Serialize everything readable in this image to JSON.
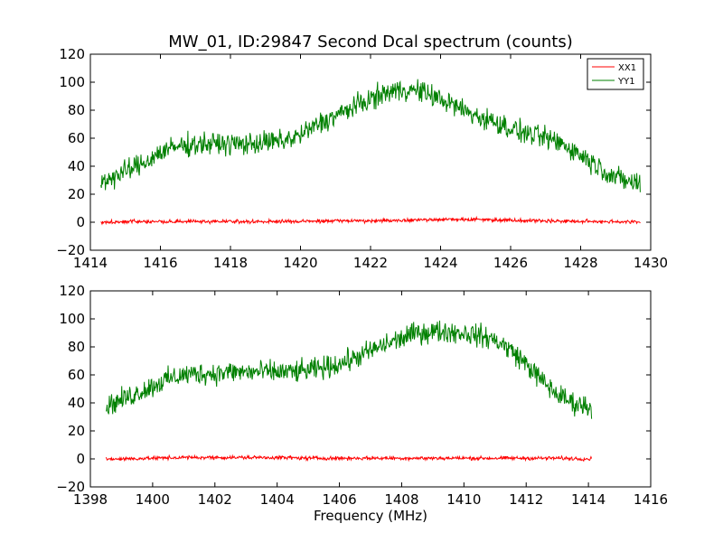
{
  "chart_data": [
    {
      "type": "line",
      "title": "MW_01, ID:29847 Second Dcal spectrum (counts)",
      "xlabel": "",
      "ylabel": "",
      "xlim": [
        1414,
        1430
      ],
      "ylim": [
        -20,
        120
      ],
      "xticks": [
        1414,
        1416,
        1418,
        1420,
        1422,
        1424,
        1426,
        1428,
        1430
      ],
      "yticks": [
        -20,
        0,
        20,
        40,
        60,
        80,
        100,
        120
      ],
      "legend": {
        "placement": "top-right",
        "entries": [
          "XX1",
          "YY1"
        ]
      },
      "series": [
        {
          "name": "XX1",
          "color": "#ff0000",
          "x": [
            1414.3,
            1415,
            1416,
            1417,
            1418,
            1419,
            1420,
            1421,
            1422,
            1423,
            1424,
            1425,
            1426,
            1427,
            1428,
            1429,
            1429.7
          ],
          "values": [
            0,
            0.5,
            0.5,
            0.5,
            0.5,
            0.5,
            0.5,
            1,
            1,
            1.5,
            2,
            2,
            1.5,
            1,
            0.5,
            0.5,
            0
          ],
          "noise": 1
        },
        {
          "name": "YY1",
          "color": "#008000",
          "x": [
            1414.3,
            1414.5,
            1415,
            1415.5,
            1416,
            1416.5,
            1417,
            1417.5,
            1418,
            1418.5,
            1419,
            1419.5,
            1420,
            1420.5,
            1421,
            1421.5,
            1422,
            1422.5,
            1423,
            1423.5,
            1424,
            1424.5,
            1425,
            1425.5,
            1426,
            1426.5,
            1427,
            1427.5,
            1428,
            1428.5,
            1429,
            1429.5,
            1429.7
          ],
          "values": [
            28,
            31,
            36,
            42,
            50,
            54,
            56,
            56,
            56,
            56,
            57,
            58,
            62,
            70,
            76,
            82,
            88,
            93,
            95,
            93,
            88,
            82,
            76,
            72,
            67,
            63,
            60,
            56,
            48,
            40,
            32,
            28,
            28
          ],
          "noise": 6
        }
      ]
    },
    {
      "type": "line",
      "title": "",
      "xlabel": "Frequency (MHz)",
      "ylabel": "",
      "xlim": [
        1398,
        1416
      ],
      "ylim": [
        -20,
        120
      ],
      "xticks": [
        1398,
        1400,
        1402,
        1404,
        1406,
        1408,
        1410,
        1412,
        1414,
        1416
      ],
      "yticks": [
        -20,
        0,
        20,
        40,
        60,
        80,
        100,
        120
      ],
      "series": [
        {
          "name": "XX1",
          "color": "#ff0000",
          "x": [
            1398.5,
            1399,
            1400,
            1401,
            1402,
            1403,
            1404,
            1405,
            1406,
            1407,
            1408,
            1409,
            1410,
            1411,
            1412,
            1413,
            1414.1
          ],
          "values": [
            0,
            0,
            0.5,
            1,
            1,
            1,
            1,
            0.5,
            0.5,
            0.5,
            0.5,
            0.5,
            0.5,
            0.5,
            0.5,
            0.5,
            0
          ],
          "noise": 1
        },
        {
          "name": "YY1",
          "color": "#008000",
          "x": [
            1398.5,
            1399,
            1399.5,
            1400,
            1400.5,
            1401,
            1401.5,
            1402,
            1402.5,
            1403,
            1403.5,
            1404,
            1404.5,
            1405,
            1405.5,
            1406,
            1406.5,
            1407,
            1407.5,
            1408,
            1408.5,
            1409,
            1409.5,
            1410,
            1410.5,
            1411,
            1411.5,
            1412,
            1412.5,
            1413,
            1413.5,
            1414.1
          ],
          "values": [
            38,
            42,
            47,
            52,
            57,
            60,
            61,
            61,
            62,
            62,
            62,
            62,
            62,
            63,
            65,
            68,
            72,
            77,
            82,
            86,
            90,
            91,
            91,
            90,
            88,
            85,
            78,
            68,
            56,
            46,
            40,
            37
          ],
          "noise": 6
        }
      ]
    }
  ]
}
